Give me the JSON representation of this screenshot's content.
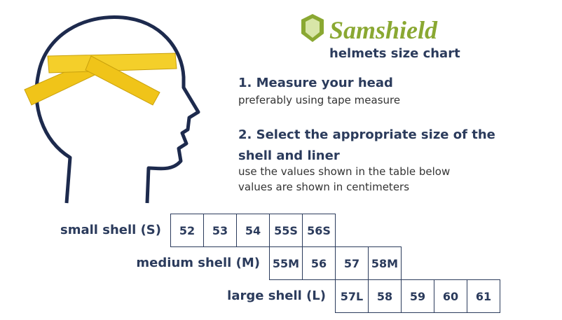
{
  "header": {
    "brand": "Samshield",
    "title": "helmets size chart"
  },
  "steps": [
    {
      "title": "1. Measure your head",
      "lines": [
        "preferably using tape measure"
      ]
    },
    {
      "title": "2. Select the appropriate size of the shell and liner",
      "lines": [
        "use the values shown in the table below",
        "values are shown in centimeters"
      ]
    }
  ],
  "table": {
    "rows": [
      {
        "label": "small shell (S)",
        "cells": [
          "52",
          "53",
          "54",
          "55S",
          "56S"
        ]
      },
      {
        "label": "medium shell (M)",
        "cells": [
          "55M",
          "56",
          "57",
          "58M"
        ]
      },
      {
        "label": "large shell (L)",
        "cells": [
          "57L",
          "58",
          "59",
          "60",
          "61"
        ]
      }
    ]
  }
}
